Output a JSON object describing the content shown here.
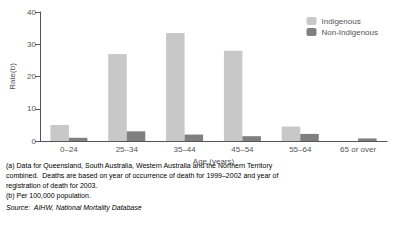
{
  "chart_data": {
    "type": "bar",
    "xlabel": "Age (years)",
    "ylabel": "Rate(b)",
    "categories": [
      "0–24",
      "25–34",
      "35–44",
      "45–54",
      "55–64",
      "65 or over"
    ],
    "series": [
      {
        "name": "Indigenous",
        "color": "#c8c8c8",
        "values": [
          5.0,
          27.0,
          33.5,
          28.0,
          4.5,
          0.0
        ]
      },
      {
        "name": "Non-Indigenous",
        "color": "#808080",
        "values": [
          1.0,
          3.0,
          2.0,
          1.5,
          2.2,
          0.8
        ]
      }
    ],
    "ylim": [
      0,
      40
    ],
    "yticks": [
      0,
      10,
      20,
      30,
      40
    ],
    "grid": false,
    "legend": "upper right",
    "annotations": [
      "(a) Data for Queensland, South Australia, Western Australia and the Northern Territory",
      "combined.  Deaths are based on year of occurrence of death for 1999–2002 and year of",
      "registration of death for 2003.",
      "(b) Per 100,000 population.",
      "Source:  AIHW, National Mortality Database"
    ]
  }
}
